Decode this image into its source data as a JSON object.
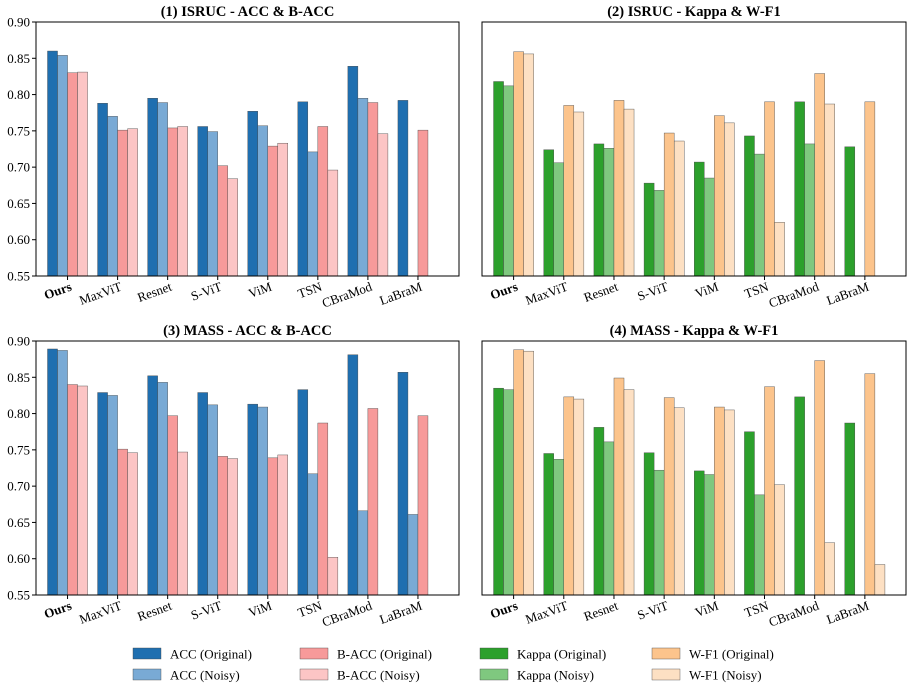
{
  "chart_data": [
    {
      "type": "bar",
      "title": "(1) ISRUC - ACC & B-ACC",
      "categories": [
        "Ours",
        "MaxViT",
        "Resnet",
        "S-ViT",
        "ViM",
        "TSN",
        "CBraMod",
        "LaBraM"
      ],
      "ylim": [
        0.55,
        0.9
      ],
      "yticks": [
        "0.55",
        "0.60",
        "0.65",
        "0.70",
        "0.75",
        "0.80",
        "0.85",
        "0.90"
      ],
      "show_yticks": true,
      "series": [
        {
          "name": "ACC (Original)",
          "color": "#1f6fb0",
          "values": [
            0.86,
            0.788,
            0.795,
            0.756,
            0.777,
            0.79,
            0.839,
            0.792
          ]
        },
        {
          "name": "ACC (Noisy)",
          "color": "#79aad5",
          "values": [
            0.854,
            0.77,
            0.789,
            0.749,
            0.757,
            0.721,
            0.795,
            null
          ]
        },
        {
          "name": "B-ACC (Original)",
          "color": "#f79a9a",
          "values": [
            0.83,
            0.751,
            0.754,
            0.702,
            0.729,
            0.756,
            0.789,
            0.751
          ]
        },
        {
          "name": "B-ACC (Noisy)",
          "color": "#fcc5c5",
          "values": [
            0.831,
            0.753,
            0.756,
            0.684,
            0.733,
            0.696,
            0.746,
            null
          ]
        }
      ]
    },
    {
      "type": "bar",
      "title": "(2) ISRUC - Kappa & W-F1",
      "categories": [
        "Ours",
        "MaxViT",
        "Resnet",
        "S-ViT",
        "ViM",
        "TSN",
        "CBraMod",
        "LaBraM"
      ],
      "ylim": [
        0.55,
        0.9
      ],
      "show_yticks": false,
      "series": [
        {
          "name": "Kappa (Original)",
          "color": "#2ca02c",
          "values": [
            0.818,
            0.724,
            0.732,
            0.678,
            0.707,
            0.743,
            0.79,
            0.728
          ]
        },
        {
          "name": "Kappa (Noisy)",
          "color": "#7fc87f",
          "values": [
            0.812,
            0.706,
            0.726,
            0.668,
            0.685,
            0.718,
            0.732,
            null
          ]
        },
        {
          "name": "W-F1 (Original)",
          "color": "#fcc48c",
          "values": [
            0.859,
            0.785,
            0.792,
            0.747,
            0.771,
            0.79,
            0.829,
            0.79
          ]
        },
        {
          "name": "W-F1 (Noisy)",
          "color": "#fde0c3",
          "values": [
            0.856,
            0.776,
            0.78,
            0.736,
            0.761,
            0.624,
            0.787,
            null
          ]
        }
      ]
    },
    {
      "type": "bar",
      "title": "(3) MASS - ACC & B-ACC",
      "categories": [
        "Ours",
        "MaxViT",
        "Resnet",
        "S-ViT",
        "ViM",
        "TSN",
        "CBraMod",
        "LaBraM"
      ],
      "ylim": [
        0.55,
        0.9
      ],
      "yticks": [
        "0.55",
        "0.60",
        "0.65",
        "0.70",
        "0.75",
        "0.80",
        "0.85",
        "0.90"
      ],
      "show_yticks": true,
      "series": [
        {
          "name": "ACC (Original)",
          "color": "#1f6fb0",
          "values": [
            0.889,
            0.829,
            0.852,
            0.829,
            0.813,
            0.833,
            0.881,
            0.857
          ]
        },
        {
          "name": "ACC (Noisy)",
          "color": "#79aad5",
          "values": [
            0.887,
            0.825,
            0.843,
            0.812,
            0.809,
            0.717,
            0.666,
            0.661
          ]
        },
        {
          "name": "B-ACC (Original)",
          "color": "#f79a9a",
          "values": [
            0.84,
            0.751,
            0.797,
            0.741,
            0.739,
            0.787,
            0.807,
            0.797
          ]
        },
        {
          "name": "B-ACC (Noisy)",
          "color": "#fcc5c5",
          "values": [
            0.838,
            0.746,
            0.747,
            0.738,
            0.743,
            0.602,
            null,
            null
          ]
        }
      ]
    },
    {
      "type": "bar",
      "title": "(4) MASS - Kappa & W-F1",
      "categories": [
        "Ours",
        "MaxViT",
        "Resnet",
        "S-ViT",
        "ViM",
        "TSN",
        "CBraMod",
        "LaBraM"
      ],
      "ylim": [
        0.55,
        0.9
      ],
      "show_yticks": false,
      "series": [
        {
          "name": "Kappa (Original)",
          "color": "#2ca02c",
          "values": [
            0.835,
            0.745,
            0.781,
            0.746,
            0.721,
            0.775,
            0.823,
            0.787
          ]
        },
        {
          "name": "Kappa (Noisy)",
          "color": "#7fc87f",
          "values": [
            0.833,
            0.737,
            0.761,
            0.722,
            0.716,
            0.688,
            null,
            null
          ]
        },
        {
          "name": "W-F1 (Original)",
          "color": "#fcc48c",
          "values": [
            0.888,
            0.823,
            0.849,
            0.822,
            0.809,
            0.837,
            0.873,
            0.855
          ]
        },
        {
          "name": "W-F1 (Noisy)",
          "color": "#fde0c3",
          "values": [
            0.886,
            0.82,
            0.833,
            0.808,
            0.805,
            0.702,
            0.622,
            0.592
          ]
        }
      ]
    }
  ],
  "legend": [
    {
      "label": "ACC (Original)",
      "color": "#1f6fb0"
    },
    {
      "label": "ACC (Noisy)",
      "color": "#79aad5"
    },
    {
      "label": "B-ACC (Original)",
      "color": "#f79a9a"
    },
    {
      "label": "B-ACC (Noisy)",
      "color": "#fcc5c5"
    },
    {
      "label": "Kappa (Original)",
      "color": "#2ca02c"
    },
    {
      "label": "Kappa (Noisy)",
      "color": "#7fc87f"
    },
    {
      "label": "W-F1 (Original)",
      "color": "#fcc48c"
    },
    {
      "label": "W-F1 (Noisy)",
      "color": "#fde0c3"
    }
  ]
}
